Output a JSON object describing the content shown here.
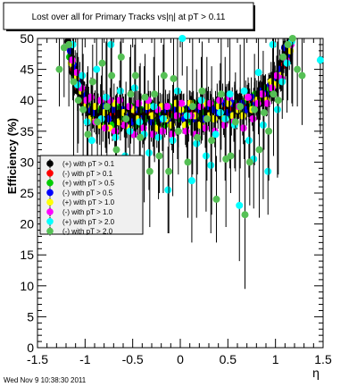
{
  "chart_data": {
    "type": "scatter",
    "title": "Lost over all for Primary Tracks vs|η| at pT > 0.11",
    "xlabel": "η",
    "ylabel": "Efficiency (%)",
    "xlim": [
      -1.5,
      1.5
    ],
    "ylim": [
      0,
      50
    ],
    "x_ticks": [
      -1.5,
      -1,
      -0.5,
      0,
      0.5,
      1,
      1.5
    ],
    "x_tick_labels": [
      "-1.5",
      "-1",
      "-0.5",
      "0",
      "0.5",
      "1",
      "1.5"
    ],
    "y_ticks": [
      0,
      5,
      10,
      15,
      20,
      25,
      30,
      35,
      40,
      45,
      50
    ],
    "y_tick_labels": [
      "0",
      "5",
      "10",
      "15",
      "20",
      "25",
      "30",
      "35",
      "40",
      "45",
      "50"
    ],
    "grid": false,
    "legend_position": "left-middle",
    "series": [
      {
        "name": "(+) with pT > 0.1",
        "color": "#000000",
        "x": [
          -1.15,
          -1.1,
          -1.05,
          -1.0,
          -0.95,
          -0.9,
          -0.85,
          -0.8,
          -0.75,
          -0.7,
          -0.65,
          -0.6,
          -0.55,
          -0.5,
          -0.45,
          -0.4,
          -0.35,
          -0.3,
          -0.25,
          -0.2,
          -0.15,
          -0.1,
          -0.05,
          0.0,
          0.05,
          0.1,
          0.15,
          0.2,
          0.25,
          0.3,
          0.35,
          0.4,
          0.45,
          0.5,
          0.55,
          0.6,
          0.65,
          0.7,
          0.75,
          0.8,
          0.85,
          0.9,
          0.95,
          1.0,
          1.05,
          1.1,
          1.15
        ],
        "y": [
          49.5,
          44.5,
          41.5,
          39.5,
          38.5,
          38.0,
          37.5,
          37.8,
          38.0,
          37.5,
          38.2,
          37.8,
          38.0,
          38.0,
          37.6,
          38.1,
          37.9,
          38.3,
          38.1,
          38.0,
          37.9,
          38.2,
          38.0,
          38.1,
          38.0,
          38.3,
          38.1,
          38.4,
          38.6,
          38.8,
          39.0,
          38.9,
          39.1,
          39.2,
          39.0,
          39.3,
          39.2,
          39.4,
          39.6,
          40.0,
          40.4,
          41.0,
          41.5,
          42.5,
          44.0,
          46.0,
          48.5
        ]
      },
      {
        "name": "(-) with pT > 0.1",
        "color": "#ff0000",
        "x": [
          -1.15,
          -1.1,
          -1.05,
          -1.0,
          -0.95,
          -0.9,
          -0.85,
          -0.8,
          -0.75,
          -0.7,
          -0.65,
          -0.6,
          -0.55,
          -0.5,
          -0.45,
          -0.4,
          -0.35,
          -0.3,
          -0.25,
          -0.2,
          -0.15,
          -0.1,
          -0.05,
          0.0,
          0.05,
          0.1,
          0.15,
          0.2,
          0.25,
          0.3,
          0.35,
          0.4,
          0.45,
          0.5,
          0.55,
          0.6,
          0.65,
          0.7,
          0.75,
          0.8,
          0.85,
          0.9,
          0.95,
          1.0,
          1.05,
          1.1,
          1.15
        ],
        "y": [
          48.5,
          45.0,
          42.0,
          40.0,
          38.8,
          38.0,
          37.2,
          37.6,
          37.9,
          37.4,
          38.0,
          37.5,
          37.8,
          37.7,
          37.4,
          37.9,
          37.7,
          38.0,
          37.8,
          37.8,
          37.6,
          37.9,
          37.7,
          35.0,
          37.8,
          38.0,
          37.9,
          38.1,
          38.3,
          38.5,
          38.7,
          38.6,
          38.8,
          39.0,
          38.8,
          39.0,
          38.9,
          39.1,
          39.3,
          39.7,
          40.2,
          40.8,
          41.2,
          42.2,
          43.8,
          45.6,
          48.0
        ]
      },
      {
        "name": "(+) with pT > 0.5",
        "color": "#00cc00",
        "x": [
          -1.15,
          -1.1,
          -1.05,
          -1.0,
          -0.95,
          -0.9,
          -0.85,
          -0.8,
          -0.75,
          -0.7,
          -0.65,
          -0.6,
          -0.55,
          -0.5,
          -0.45,
          -0.4,
          -0.35,
          -0.3,
          -0.25,
          -0.2,
          -0.15,
          -0.1,
          -0.05,
          0.0,
          0.05,
          0.1,
          0.15,
          0.2,
          0.25,
          0.3,
          0.35,
          0.4,
          0.45,
          0.5,
          0.55,
          0.6,
          0.65,
          0.7,
          0.75,
          0.8,
          0.85,
          0.9,
          0.95,
          1.0,
          1.05,
          1.1,
          1.15
        ],
        "y": [
          47.0,
          44.0,
          42.5,
          40.5,
          39.0,
          37.5,
          38.5,
          36.5,
          38.5,
          36.0,
          39.0,
          37.0,
          36.5,
          39.0,
          36.0,
          38.5,
          37.0,
          39.5,
          36.5,
          38.0,
          36.0,
          39.0,
          37.5,
          37.0,
          38.5,
          36.5,
          39.5,
          37.5,
          38.0,
          39.5,
          37.0,
          39.5,
          38.0,
          40.0,
          37.5,
          39.5,
          38.5,
          40.0,
          39.0,
          41.0,
          40.0,
          42.0,
          41.5,
          43.0,
          44.5,
          47.0,
          49.0
        ]
      },
      {
        "name": "(-) with pT > 0.5",
        "color": "#0000ff",
        "x": [
          -1.15,
          -1.1,
          -1.05,
          -1.0,
          -0.95,
          -0.9,
          -0.85,
          -0.8,
          -0.75,
          -0.7,
          -0.65,
          -0.6,
          -0.55,
          -0.5,
          -0.45,
          -0.4,
          -0.35,
          -0.3,
          -0.25,
          -0.2,
          -0.15,
          -0.1,
          -0.05,
          0.0,
          0.05,
          0.1,
          0.15,
          0.2,
          0.25,
          0.3,
          0.35,
          0.4,
          0.45,
          0.5,
          0.55,
          0.6,
          0.65,
          0.7,
          0.75,
          0.8,
          0.85,
          0.9,
          0.95,
          1.0,
          1.05,
          1.1,
          1.15
        ],
        "y": [
          48.0,
          45.5,
          43.0,
          41.0,
          38.5,
          38.0,
          36.5,
          39.0,
          37.0,
          38.5,
          36.5,
          38.5,
          37.5,
          36.5,
          38.5,
          37.0,
          38.5,
          36.5,
          38.5,
          37.0,
          38.5,
          36.5,
          38.5,
          38.0,
          37.0,
          39.0,
          37.0,
          38.5,
          37.0,
          39.0,
          38.5,
          38.0,
          39.5,
          38.0,
          39.5,
          38.5,
          39.5,
          38.5,
          40.5,
          39.5,
          41.5,
          41.0,
          42.5,
          43.0,
          45.0,
          48.5,
          47.5
        ]
      },
      {
        "name": "(+) with pT > 1.0",
        "color": "#ffff00",
        "x": [
          -1.15,
          -1.1,
          -1.05,
          -1.0,
          -0.95,
          -0.9,
          -0.85,
          -0.8,
          -0.75,
          -0.7,
          -0.65,
          -0.6,
          -0.55,
          -0.5,
          -0.45,
          -0.4,
          -0.35,
          -0.3,
          -0.25,
          -0.2,
          -0.15,
          -0.1,
          -0.05,
          0.0,
          0.05,
          0.1,
          0.15,
          0.2,
          0.25,
          0.3,
          0.35,
          0.4,
          0.45,
          0.5,
          0.55,
          0.6,
          0.65,
          0.7,
          0.75,
          0.8,
          0.85,
          0.9,
          0.95,
          1.0,
          1.05,
          1.1,
          1.15
        ],
        "y": [
          46.0,
          43.5,
          41.5,
          39.0,
          37.0,
          39.0,
          36.0,
          38.0,
          35.5,
          39.5,
          36.5,
          38.0,
          35.5,
          38.5,
          37.0,
          35.5,
          39.0,
          37.5,
          35.5,
          39.0,
          37.0,
          36.0,
          39.5,
          38.5,
          36.0,
          39.5,
          37.5,
          36.0,
          39.5,
          37.5,
          37.0,
          39.0,
          37.0,
          39.5,
          37.5,
          38.5,
          37.5,
          40.5,
          38.5,
          40.0,
          41.0,
          40.0,
          43.0,
          42.5,
          44.0,
          46.5,
          48.0
        ]
      },
      {
        "name": "(-) with pT > 1.0",
        "color": "#ff00ff",
        "x": [
          -1.15,
          -1.1,
          -1.05,
          -1.0,
          -0.95,
          -0.9,
          -0.85,
          -0.8,
          -0.75,
          -0.7,
          -0.65,
          -0.6,
          -0.55,
          -0.5,
          -0.45,
          -0.4,
          -0.35,
          -0.3,
          -0.25,
          -0.2,
          -0.15,
          -0.1,
          -0.05,
          0.0,
          0.05,
          0.1,
          0.15,
          0.2,
          0.25,
          0.3,
          0.35,
          0.4,
          0.45,
          0.5,
          0.55,
          0.6,
          0.65,
          0.7,
          0.75,
          0.8,
          0.85,
          0.9,
          0.95,
          1.0,
          1.05,
          1.1,
          1.15
        ],
        "y": [
          46.5,
          44.5,
          42.0,
          40.0,
          40.5,
          36.5,
          40.0,
          35.5,
          40.0,
          35.0,
          40.0,
          36.0,
          39.0,
          34.5,
          39.5,
          35.5,
          40.0,
          34.5,
          38.5,
          35.0,
          39.0,
          34.5,
          37.5,
          39.5,
          35.0,
          37.5,
          34.5,
          39.0,
          35.5,
          39.5,
          35.0,
          40.0,
          36.0,
          40.5,
          36.5,
          39.0,
          35.5,
          40.5,
          37.0,
          39.5,
          41.0,
          39.5,
          42.0,
          44.0,
          43.5,
          46.5,
          49.0
        ]
      },
      {
        "name": "(+) with pT > 2.0",
        "color": "#00ffff",
        "x": [
          -1.15,
          -1.1,
          -1.05,
          -1.0,
          -0.95,
          -0.9,
          -0.85,
          -0.8,
          -0.75,
          -0.7,
          -0.65,
          -0.6,
          -0.55,
          -0.5,
          -0.45,
          -0.4,
          -0.35,
          -0.3,
          -0.25,
          -0.2,
          -0.15,
          -0.1,
          -0.05,
          0.0,
          0.05,
          0.1,
          0.15,
          0.2,
          0.25,
          0.3,
          0.35,
          0.4,
          0.45,
          0.5,
          0.55,
          0.6,
          0.65,
          0.7,
          0.75,
          0.8,
          0.85,
          0.9,
          0.95,
          1.0,
          1.05,
          1.1,
          1.15,
          1.45
        ],
        "y": [
          49.0,
          42.5,
          44.0,
          36.5,
          33.5,
          45.0,
          37.0,
          40.5,
          49.0,
          34.0,
          41.5,
          31.0,
          35.0,
          42.0,
          36.5,
          34.5,
          31.5,
          39.0,
          34.0,
          37.0,
          25.5,
          33.5,
          41.5,
          50.0,
          37.5,
          27.0,
          33.0,
          40.0,
          31.0,
          29.5,
          34.5,
          38.0,
          37.0,
          41.0,
          36.0,
          23.0,
          41.5,
          33.5,
          30.5,
          44.5,
          36.0,
          28.5,
          49.0,
          38.5,
          43.0,
          46.0,
          49.5,
          46.5
        ]
      },
      {
        "name": "(-) with pT > 2.0",
        "color": "#55c055",
        "x": [
          -1.3,
          -1.25,
          -1.2,
          -1.15,
          -1.1,
          -1.05,
          -1.0,
          -0.95,
          -0.9,
          -0.85,
          -0.8,
          -0.75,
          -0.7,
          -0.65,
          -0.6,
          -0.55,
          -0.5,
          -0.45,
          -0.4,
          -0.35,
          -0.3,
          -0.25,
          -0.2,
          -0.15,
          -0.1,
          -0.05,
          0.05,
          0.1,
          0.15,
          0.2,
          0.25,
          0.3,
          0.35,
          0.4,
          0.45,
          0.5,
          0.55,
          0.6,
          0.65,
          0.7,
          0.75,
          0.8,
          0.85,
          0.9,
          0.95,
          1.0,
          1.05,
          1.1,
          1.15,
          1.2,
          1.25
        ],
        "y": [
          45.0,
          48.5,
          49.0,
          43.0,
          40.0,
          38.5,
          34.5,
          43.0,
          36.5,
          46.0,
          39.0,
          44.0,
          32.0,
          47.0,
          37.0,
          41.0,
          44.0,
          34.0,
          40.5,
          28.5,
          41.0,
          31.0,
          44.0,
          28.5,
          43.5,
          35.0,
          30.0,
          39.0,
          34.0,
          41.5,
          37.0,
          33.5,
          24.0,
          41.0,
          30.5,
          31.0,
          36.5,
          39.0,
          21.5,
          30.0,
          38.5,
          32.0,
          38.0,
          35.0,
          41.0,
          40.0,
          47.0,
          49.0,
          50.0,
          45.0,
          44.0
        ]
      }
    ]
  },
  "footer": {
    "timestamp": "Wed Nov  9 10:38:30 2011"
  }
}
